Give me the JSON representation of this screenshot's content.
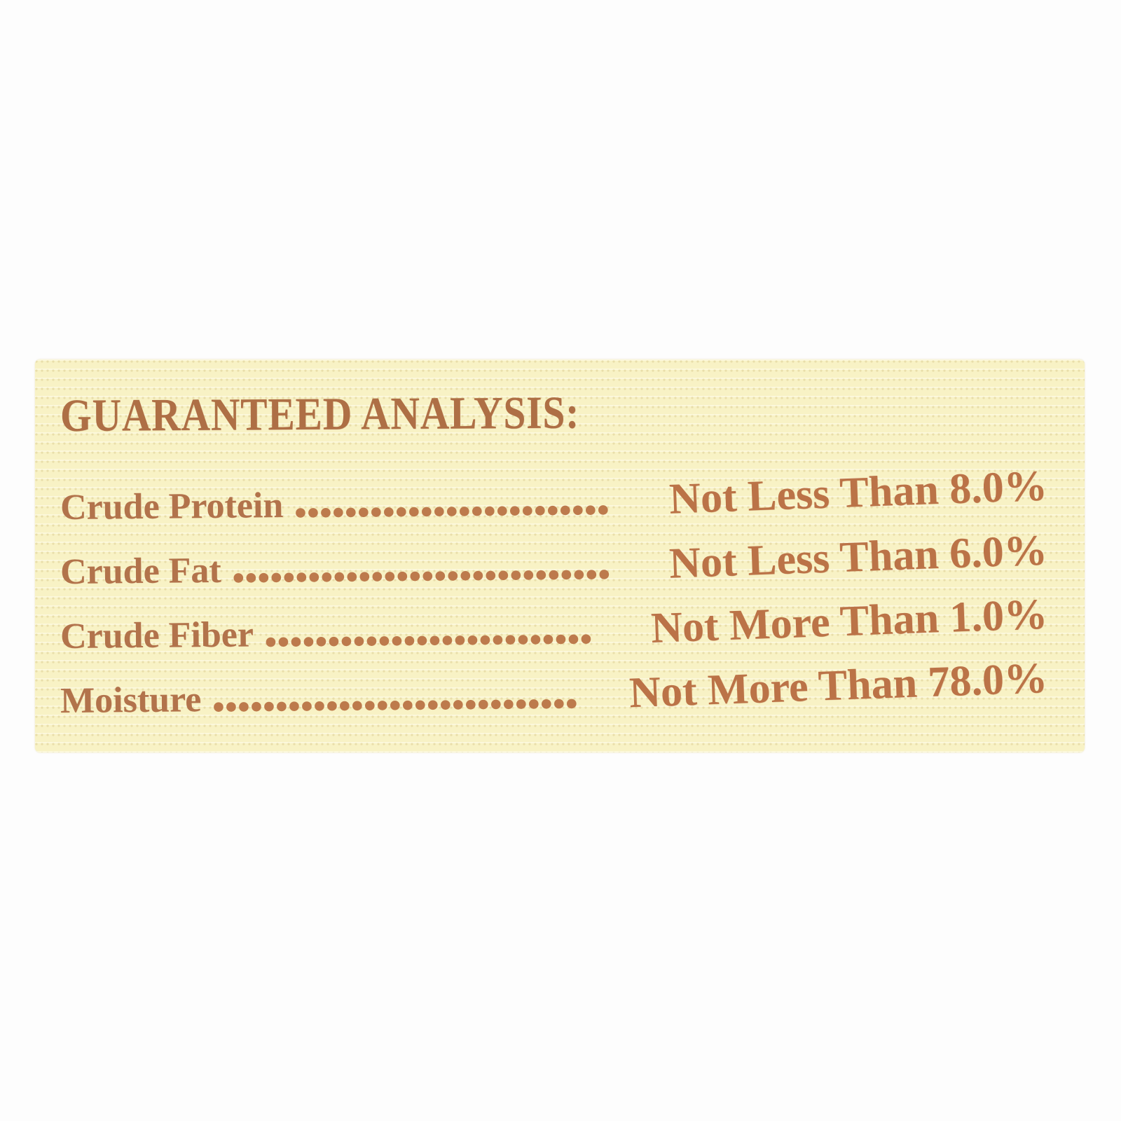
{
  "label": {
    "heading": "GUARANTEED ANALYSIS:",
    "rows": [
      {
        "name": "Crude Protein",
        "leader": ".........................",
        "value": "Not Less Than 8.0%"
      },
      {
        "name": "Crude Fat",
        "leader": "..............................",
        "value": "Not Less Than 6.0%"
      },
      {
        "name": "Crude Fiber",
        "leader": "..........................",
        "value": "Not More Than 1.0%"
      },
      {
        "name": "Moisture",
        "leader": ".............................",
        "value": "Not More Than 78.0%"
      }
    ],
    "colors": {
      "page_background": "#fdfdfd",
      "label_background": "#f8f2c5",
      "text_brown": "#b2734b"
    }
  }
}
